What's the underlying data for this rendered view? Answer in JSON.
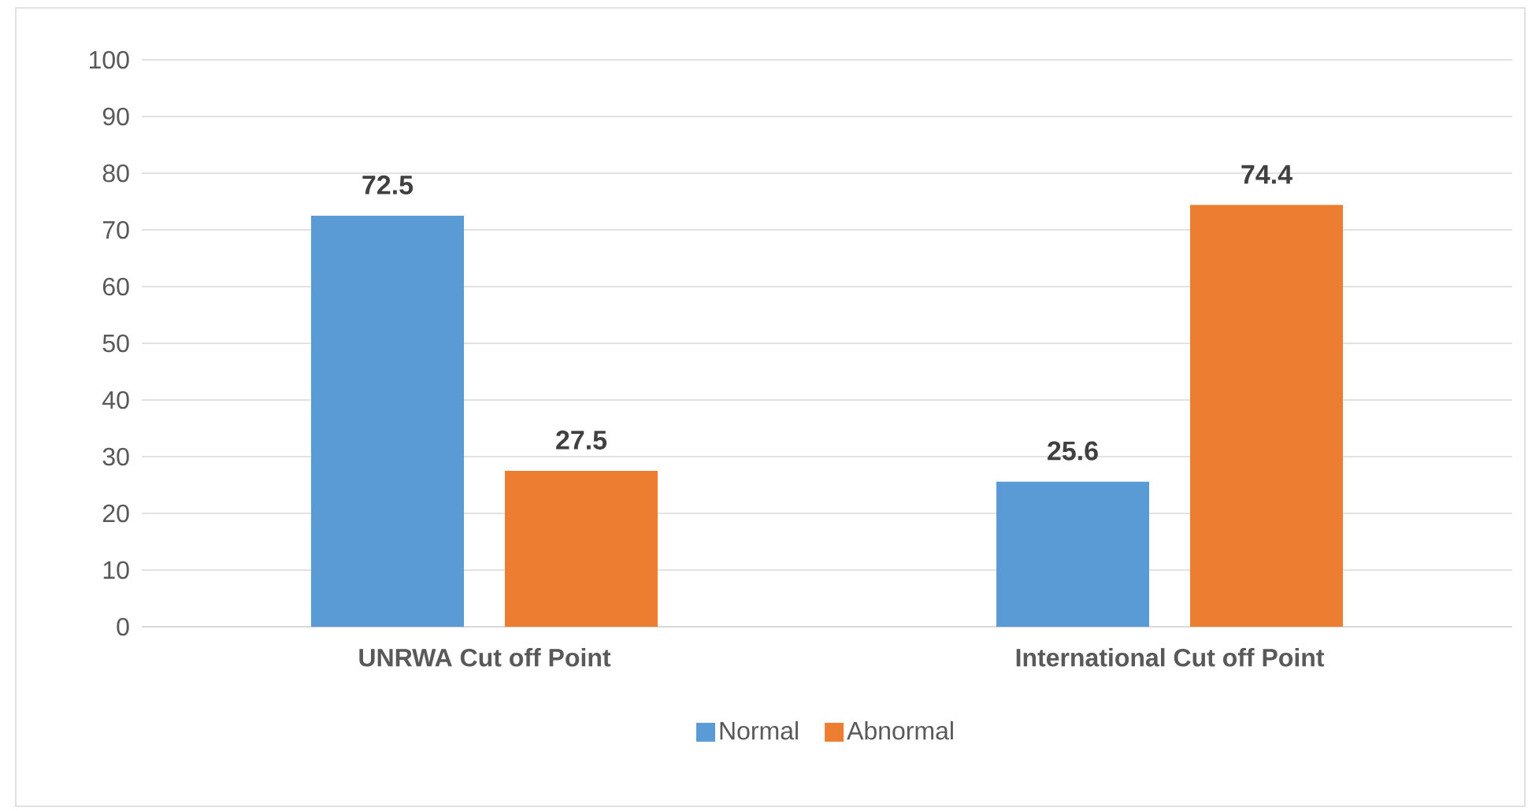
{
  "chart_data": {
    "type": "bar",
    "categories": [
      "UNRWA Cut off Point",
      "International Cut off Point"
    ],
    "series": [
      {
        "name": "Normal",
        "color": "#5b9bd5",
        "values": [
          72.5,
          25.6
        ]
      },
      {
        "name": "Abnormal",
        "color": "#ed7d31",
        "values": [
          27.5,
          74.4
        ]
      }
    ],
    "ylim": [
      0,
      100
    ],
    "yticks": [
      0,
      10,
      20,
      30,
      40,
      50,
      60,
      70,
      80,
      90,
      100
    ],
    "grid": "y",
    "legend": "bottom",
    "data_labels": true
  }
}
